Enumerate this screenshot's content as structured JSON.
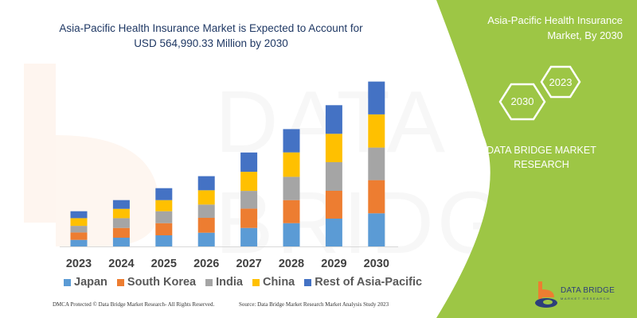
{
  "title_line1": "Asia-Pacific Health Insurance Market is Expected to Account for",
  "title_line2": "USD 564,990.33 Million by 2030",
  "side_panel": {
    "title_line1": "Asia-Pacific Health Insurance",
    "title_line2": "Market, By 2030",
    "hex_2030": "2030",
    "hex_2023": "2023",
    "brand_line1": "DATA BRIDGE MARKET",
    "brand_line2": "RESEARCH",
    "logo_text": "DATA BRIDGE",
    "logo_sub": "MARKET RESEARCH",
    "color": "#9dc645"
  },
  "footer": {
    "dmca": "DMCA Protected © Data Bridge Market Research- All Rights Reserved.",
    "source": "Source: Data Bridge Market Research Market Analysis Study 2023"
  },
  "chart_data": {
    "type": "bar",
    "stacked": true,
    "title": "Asia-Pacific Health Insurance Market is Expected to Account for USD 564,990.33 Million by 2030",
    "xlabel": "",
    "ylabel": "",
    "y_axis_shown": false,
    "grid": false,
    "legend_position": "bottom",
    "categories": [
      "2023",
      "2024",
      "2025",
      "2026",
      "2027",
      "2028",
      "2029",
      "2030"
    ],
    "series": [
      {
        "name": "Japan",
        "color": "#5b9bd5",
        "values": [
          8.3,
          11.0,
          14.0,
          17.3,
          23.3,
          29.3,
          35.0,
          41.7
        ]
      },
      {
        "name": "South Korea",
        "color": "#ed7d31",
        "values": [
          9.3,
          12.3,
          15.3,
          18.7,
          24.3,
          29.0,
          35.0,
          41.7
        ]
      },
      {
        "name": "India",
        "color": "#a5a5a5",
        "values": [
          8.3,
          12.3,
          15.0,
          16.7,
          22.3,
          29.3,
          36.0,
          41.0
        ]
      },
      {
        "name": "China",
        "color": "#ffc000",
        "values": [
          9.7,
          11.7,
          14.0,
          18.0,
          24.0,
          30.7,
          35.7,
          41.7
        ]
      },
      {
        "name": "Rest of Asia-Pacific",
        "color": "#4472c4",
        "values": [
          8.7,
          11.0,
          15.0,
          17.7,
          24.3,
          29.3,
          36.0,
          41.3
        ]
      }
    ]
  }
}
